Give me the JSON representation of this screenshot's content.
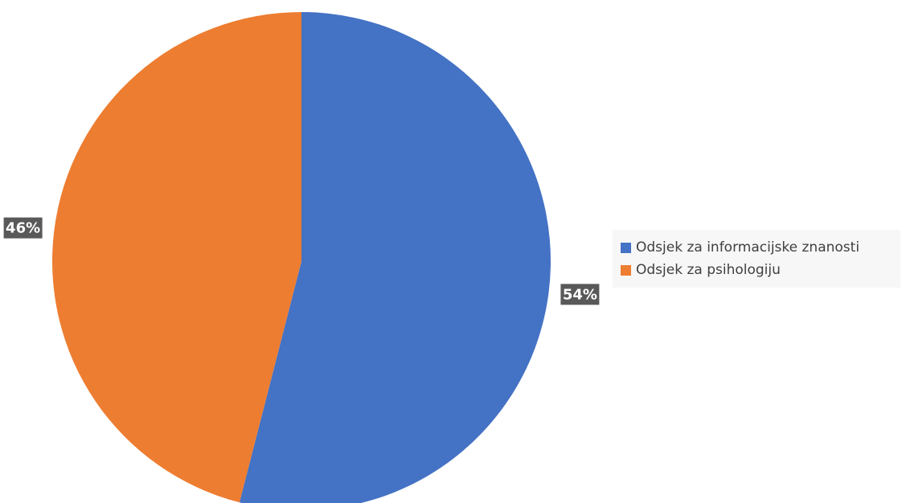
{
  "chart_data": {
    "type": "pie",
    "categories": [
      "Odsjek za informacijske znanosti",
      "Odsjek za psihologiju"
    ],
    "values": [
      54,
      46
    ],
    "labels": [
      "54%",
      "46%"
    ],
    "colors": [
      "#4472C4",
      "#ED7D31"
    ],
    "title": "",
    "legend_position": "right",
    "start_angle_deg": 0,
    "direction": "clockwise"
  }
}
